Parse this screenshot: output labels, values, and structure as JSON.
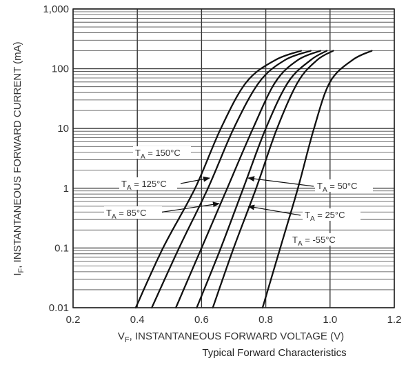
{
  "chart_data": {
    "type": "line",
    "title": "",
    "caption": "Typical Forward Characteristics",
    "xlabel": {
      "main": "V",
      "sub": "F",
      "rest": ", INSTANTANEOUS FORWARD VOLTAGE (V)"
    },
    "ylabel": {
      "main": "I",
      "sub": "F",
      "rest": ", INSTANTANEOUS FORWARD CURRENT (mA)"
    },
    "x_scale": "linear",
    "y_scale": "log",
    "xlim": [
      0.2,
      1.2
    ],
    "ylim": [
      0.01,
      1000
    ],
    "x_ticks": [
      0.2,
      0.4,
      0.6,
      0.8,
      1.0,
      1.2
    ],
    "x_tick_labels": [
      "0.2",
      "0.4",
      "0.6",
      "0.8",
      "1.0",
      "1.2"
    ],
    "y_ticks": [
      0.01,
      0.1,
      1,
      10,
      100,
      1000
    ],
    "y_tick_labels": [
      "0.01",
      "0.1",
      "1",
      "10",
      "100",
      "1,000"
    ],
    "grid": true,
    "series": [
      {
        "name": "TA = 150°C",
        "label_main": "T",
        "label_sub": "A",
        "label_rest": " = 150°C",
        "x": [
          0.395,
          0.48,
          0.58,
          0.66,
          0.74,
          0.83,
          0.91
        ],
        "y": [
          0.01,
          0.1,
          1,
          10,
          60,
          140,
          200
        ]
      },
      {
        "name": "TA = 125°C",
        "label_main": "T",
        "label_sub": "A",
        "label_rest": " = 125°C",
        "x": [
          0.445,
          0.53,
          0.62,
          0.7,
          0.78,
          0.86,
          0.94
        ],
        "y": [
          0.01,
          0.1,
          1,
          10,
          60,
          140,
          200
        ]
      },
      {
        "name": "TA = 85°C",
        "label_main": "T",
        "label_sub": "A",
        "label_rest": " = 85°C",
        "x": [
          0.52,
          0.6,
          0.68,
          0.76,
          0.83,
          0.9,
          0.97
        ],
        "y": [
          0.01,
          0.1,
          1,
          10,
          60,
          140,
          200
        ]
      },
      {
        "name": "TA = 50°C",
        "label_main": "T",
        "label_sub": "A",
        "label_rest": " = 50°C",
        "x": [
          0.585,
          0.66,
          0.73,
          0.8,
          0.87,
          0.94,
          0.99
        ],
        "y": [
          0.01,
          0.1,
          1,
          10,
          60,
          140,
          200
        ]
      },
      {
        "name": "TA = 25°C",
        "label_main": "T",
        "label_sub": "A",
        "label_rest": " = 25°C",
        "x": [
          0.635,
          0.7,
          0.77,
          0.835,
          0.9,
          0.96,
          1.01
        ],
        "y": [
          0.01,
          0.1,
          1,
          10,
          60,
          140,
          200
        ]
      },
      {
        "name": "TA = -55°C",
        "label_main": "T",
        "label_sub": "A",
        "label_rest": " = -55°C",
        "x": [
          0.79,
          0.845,
          0.9,
          0.95,
          1.0,
          1.07,
          1.13
        ],
        "y": [
          0.01,
          0.1,
          1,
          10,
          60,
          140,
          200
        ]
      }
    ]
  }
}
